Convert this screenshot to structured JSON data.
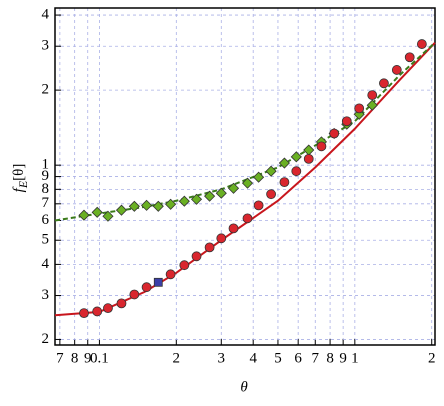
{
  "chart_data": {
    "type": "scatter",
    "log_x": true,
    "log_y": true,
    "grid": true,
    "x_label": "θ",
    "y_label": [
      "f",
      "E",
      "[θ]"
    ],
    "xlim": [
      0.067,
      2.06
    ],
    "ylim": [
      0.19,
      4.27
    ],
    "xticks": [
      {
        "value": 0.07,
        "label": "7"
      },
      {
        "value": 0.08,
        "label": "8"
      },
      {
        "value": 0.09,
        "label": "9"
      },
      0.1,
      {
        "value": 0.2,
        "label": "2"
      },
      {
        "value": 0.3,
        "label": "3"
      },
      {
        "value": 0.4,
        "label": "4"
      },
      {
        "value": 0.5,
        "label": "5"
      },
      {
        "value": 0.6,
        "label": "6"
      },
      {
        "value": 0.7,
        "label": "7"
      },
      {
        "value": 0.8,
        "label": "8"
      },
      {
        "value": 0.9,
        "label": "9"
      },
      1,
      2
    ],
    "yticks": [
      {
        "value": 0.2,
        "label": "2"
      },
      {
        "value": 0.3,
        "label": "3"
      },
      {
        "value": 0.4,
        "label": "4"
      },
      {
        "value": 0.5,
        "label": "5"
      },
      {
        "value": 0.6,
        "label": "6"
      },
      {
        "value": 0.7,
        "label": "7"
      },
      {
        "value": 0.8,
        "label": "8"
      },
      {
        "value": 0.9,
        "label": "9"
      },
      1,
      2,
      3,
      4
    ],
    "series": [
      {
        "marker": "line",
        "style": "solid",
        "color": "#c8161d",
        "x": [
          0.067,
          0.1,
          0.15,
          0.2,
          0.3,
          0.5,
          0.7,
          1,
          1.5,
          2.06
        ],
        "values": [
          0.25,
          0.258,
          0.31,
          0.37,
          0.5,
          0.72,
          0.98,
          1.4,
          2.2,
          3.1
        ]
      },
      {
        "marker": "line",
        "style": "dashed",
        "color": "#3a7a1a",
        "x": [
          0.067,
          0.1,
          0.15,
          0.2,
          0.3,
          0.5,
          0.7,
          1,
          1.5,
          2.06
        ],
        "values": [
          0.6,
          0.64,
          0.68,
          0.72,
          0.8,
          0.98,
          1.2,
          1.5,
          2.3,
          3.1
        ]
      },
      {
        "marker": "diamond",
        "color": "#6ab023",
        "x": [
          0.087,
          0.098,
          0.108,
          0.122,
          0.137,
          0.153,
          0.17,
          0.19,
          0.215,
          0.24,
          0.27,
          0.3,
          0.335,
          0.38,
          0.42,
          0.47,
          0.53,
          0.59,
          0.66,
          0.74,
          0.83,
          0.93,
          1.04,
          1.17
        ],
        "values": [
          0.63,
          0.647,
          0.624,
          0.66,
          0.684,
          0.69,
          0.684,
          0.697,
          0.717,
          0.73,
          0.751,
          0.772,
          0.808,
          0.847,
          0.895,
          0.946,
          1.02,
          1.08,
          1.15,
          1.24,
          1.34,
          1.46,
          1.6,
          1.74
        ]
      },
      {
        "marker": "circle",
        "color": "#d9262e",
        "x": [
          0.087,
          0.098,
          0.108,
          0.122,
          0.137,
          0.153,
          0.19,
          0.215,
          0.24,
          0.27,
          0.3,
          0.335,
          0.38,
          0.42,
          0.47,
          0.53,
          0.59,
          0.66,
          0.74,
          0.83,
          0.93,
          1.04,
          1.17,
          1.3,
          1.46,
          1.64,
          1.83
        ],
        "values": [
          0.255,
          0.259,
          0.267,
          0.279,
          0.303,
          0.324,
          0.365,
          0.397,
          0.431,
          0.468,
          0.509,
          0.558,
          0.612,
          0.69,
          0.765,
          0.855,
          0.946,
          1.06,
          1.19,
          1.34,
          1.5,
          1.69,
          1.91,
          2.13,
          2.41,
          2.71,
          3.06
        ]
      },
      {
        "marker": "square",
        "color": "#3b3fa8",
        "x": [
          0.17
        ],
        "values": [
          0.339
        ]
      }
    ]
  }
}
